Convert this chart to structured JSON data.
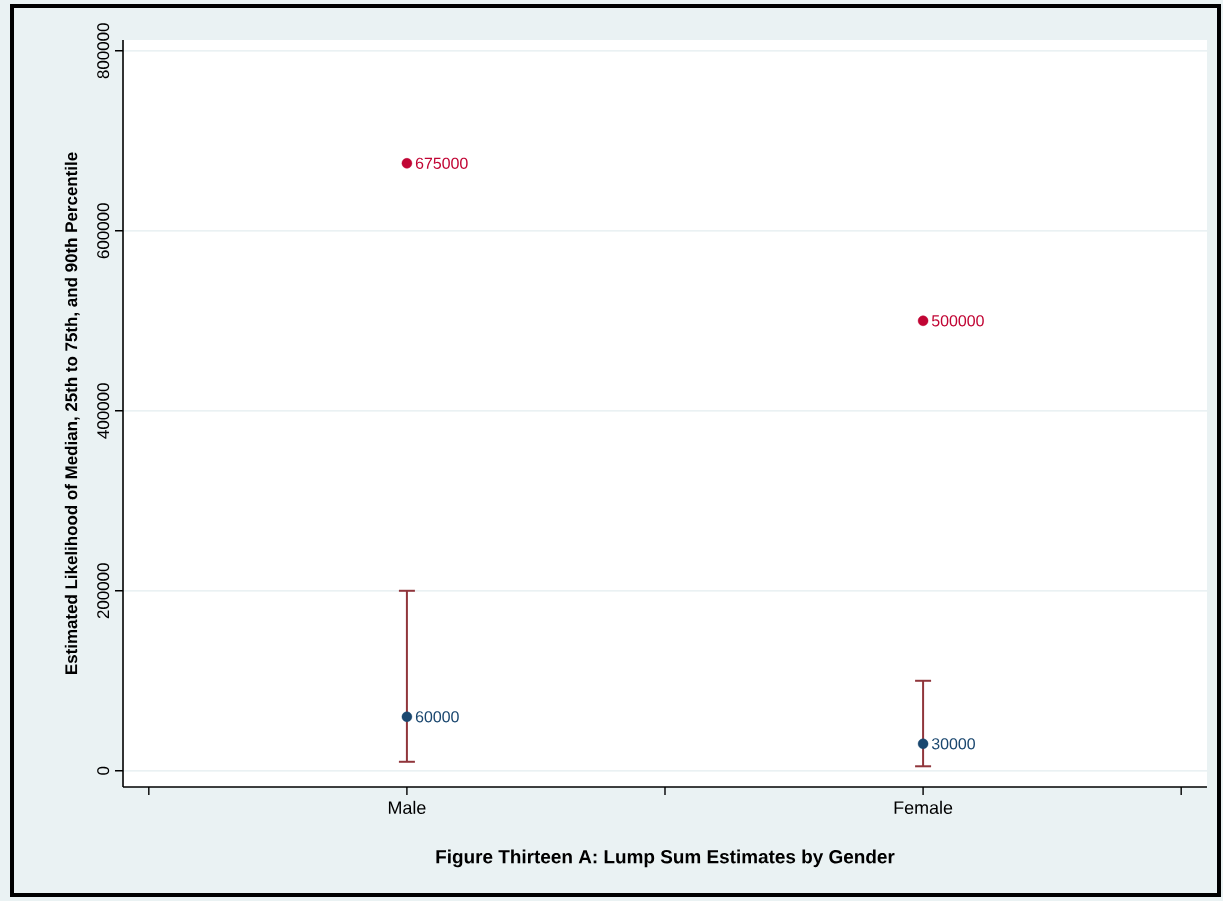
{
  "chart_data": {
    "type": "scatter",
    "xlabel": "Figure Thirteen A: Lump Sum Estimates by Gender",
    "ylabel": "Estimated Likelihood of Median, 25th to 75th, and 90th Percentile",
    "categories": [
      "Male",
      "Female"
    ],
    "series": [
      {
        "color": "#1a476f",
        "values": [
          60000,
          30000
        ],
        "errors": [
          [
            10000,
            200000
          ],
          [
            5000,
            100000
          ]
        ]
      },
      {
        "color": "#c10534",
        "values": [
          675000,
          500000
        ]
      }
    ],
    "ylim": [
      -18000,
      812000
    ],
    "yticks": [
      0,
      200000,
      400000,
      600000,
      800000
    ],
    "grid": "y",
    "marker": "circle",
    "data_labels": true
  }
}
